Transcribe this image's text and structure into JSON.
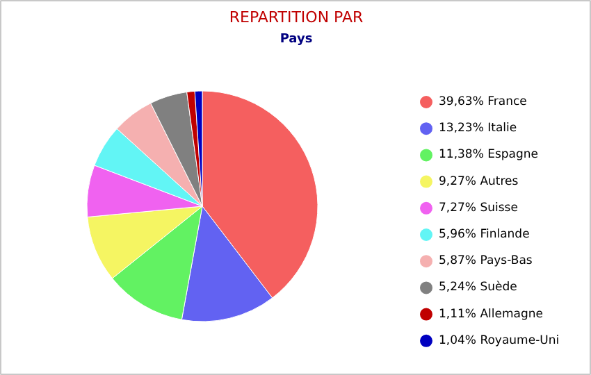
{
  "chart_data": {
    "type": "pie",
    "title": "REPARTITION PAR",
    "subtitle": "Pays",
    "categories": [
      "France",
      "Italie",
      "Espagne",
      "Autres",
      "Suisse",
      "Finlande",
      "Pays-Bas",
      "Suède",
      "Allemagne",
      "Royaume-Uni"
    ],
    "values": [
      39.63,
      13.23,
      11.38,
      9.27,
      7.27,
      5.96,
      5.87,
      5.24,
      1.11,
      1.04
    ],
    "value_labels": [
      "39,63%",
      "13,23%",
      "11,38%",
      "9,27%",
      "7,27%",
      "5,96%",
      "5,87%",
      "5,24%",
      "1,11%",
      "1,04%"
    ],
    "colors": [
      "#f55f5f",
      "#6262f2",
      "#62f262",
      "#f5f562",
      "#f062f0",
      "#62f5f5",
      "#f5b0b0",
      "#808080",
      "#c00000",
      "#0000c0"
    ],
    "legend": "right"
  }
}
